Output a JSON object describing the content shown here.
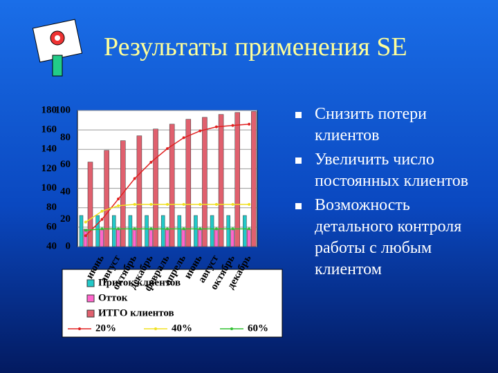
{
  "slide": {
    "title": "Результаты применения SE",
    "bullets": [
      "Снизить потери клиентов",
      "Увеличить число постоянных клиентов",
      "Возможность детального контроля работы с любым клиентом"
    ]
  },
  "chart_data": {
    "type": "bar",
    "categories": [
      null,
      "июнь",
      "август",
      "октябрь",
      "декабрь",
      "февраль",
      "апрель",
      "июнь",
      "август",
      "октябрь",
      "декабрь"
    ],
    "series": [
      {
        "name": "Приток клиентов",
        "color": "#22c8c8",
        "values": [
          72,
          72,
          72,
          72,
          72,
          72,
          72,
          72,
          72,
          72,
          72
        ]
      },
      {
        "name": "Отток",
        "color": "#ff66cc",
        "values": [
          58,
          58,
          58,
          58,
          58,
          58,
          58,
          58,
          58,
          58,
          58
        ]
      },
      {
        "name": "ИТГО клиентов",
        "color": "#e0606e",
        "values": [
          127,
          139,
          149,
          154,
          161,
          166,
          171,
          173,
          176,
          178,
          179
        ]
      },
      {
        "name": "20%",
        "type": "line",
        "axis": "y2",
        "color": "#e02020",
        "values": [
          8,
          20,
          35,
          50,
          62,
          72,
          80,
          85,
          88,
          89,
          90
        ]
      },
      {
        "name": "40%",
        "type": "line",
        "axis": "y2",
        "color": "#f0e020",
        "values": [
          18,
          26,
          30,
          31,
          31,
          31,
          31,
          31,
          31,
          31,
          31
        ]
      },
      {
        "name": "60%",
        "type": "line",
        "axis": "y2",
        "color": "#30c030",
        "values": [
          12,
          13,
          13,
          13,
          13,
          13,
          13,
          13,
          13,
          13,
          13
        ]
      }
    ],
    "ylim": [
      40,
      180
    ],
    "yticks": [
      40,
      60,
      80,
      100,
      120,
      140,
      160,
      180
    ],
    "y2lim": [
      0,
      100
    ],
    "y2ticks": [
      0,
      20,
      40,
      60,
      80,
      100
    ],
    "grid": true
  }
}
